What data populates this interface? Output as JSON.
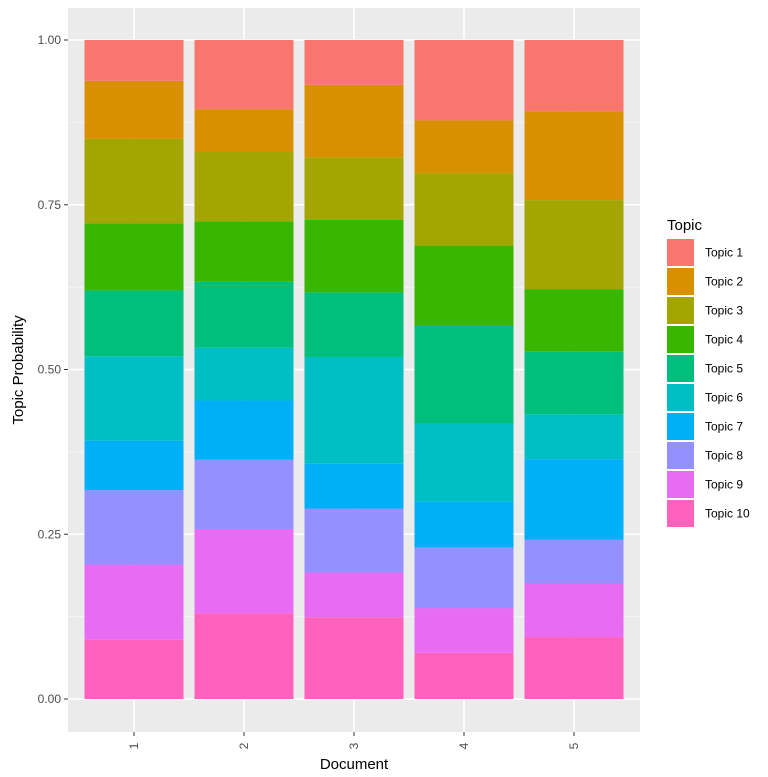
{
  "chart_data": {
    "type": "bar",
    "stacked": true,
    "xlabel": "Document",
    "ylabel": "Topic Probability",
    "ylim": [
      0,
      1
    ],
    "yticks": [
      "0.00",
      "0.25",
      "0.50",
      "0.75",
      "1.00"
    ],
    "categories": [
      "1",
      "2",
      "3",
      "4",
      "5"
    ],
    "legend_title": "Topic",
    "legend_position": "right",
    "grid": true,
    "series": [
      {
        "name": "Topic 1",
        "color": "#F8766D",
        "values": [
          0.062,
          0.105,
          0.068,
          0.122,
          0.108
        ]
      },
      {
        "name": "Topic 2",
        "color": "#D89000",
        "values": [
          0.088,
          0.065,
          0.11,
          0.08,
          0.135
        ]
      },
      {
        "name": "Topic 3",
        "color": "#A3A500",
        "values": [
          0.128,
          0.105,
          0.095,
          0.11,
          0.135
        ]
      },
      {
        "name": "Topic 4",
        "color": "#39B600",
        "values": [
          0.102,
          0.092,
          0.11,
          0.122,
          0.095
        ]
      },
      {
        "name": "Topic 5",
        "color": "#00BF7D",
        "values": [
          0.1,
          0.1,
          0.098,
          0.148,
          0.095
        ]
      },
      {
        "name": "Topic 6",
        "color": "#00BFC4",
        "values": [
          0.128,
          0.08,
          0.162,
          0.118,
          0.068
        ]
      },
      {
        "name": "Topic 7",
        "color": "#00B0F6",
        "values": [
          0.075,
          0.09,
          0.068,
          0.07,
          0.122
        ]
      },
      {
        "name": "Topic 8",
        "color": "#9590FF",
        "values": [
          0.113,
          0.105,
          0.097,
          0.092,
          0.066
        ]
      },
      {
        "name": "Topic 9",
        "color": "#E76BF3",
        "values": [
          0.114,
          0.128,
          0.068,
          0.068,
          0.082
        ]
      },
      {
        "name": "Topic 10",
        "color": "#FF62BC",
        "values": [
          0.09,
          0.13,
          0.124,
          0.07,
          0.094
        ]
      }
    ]
  }
}
